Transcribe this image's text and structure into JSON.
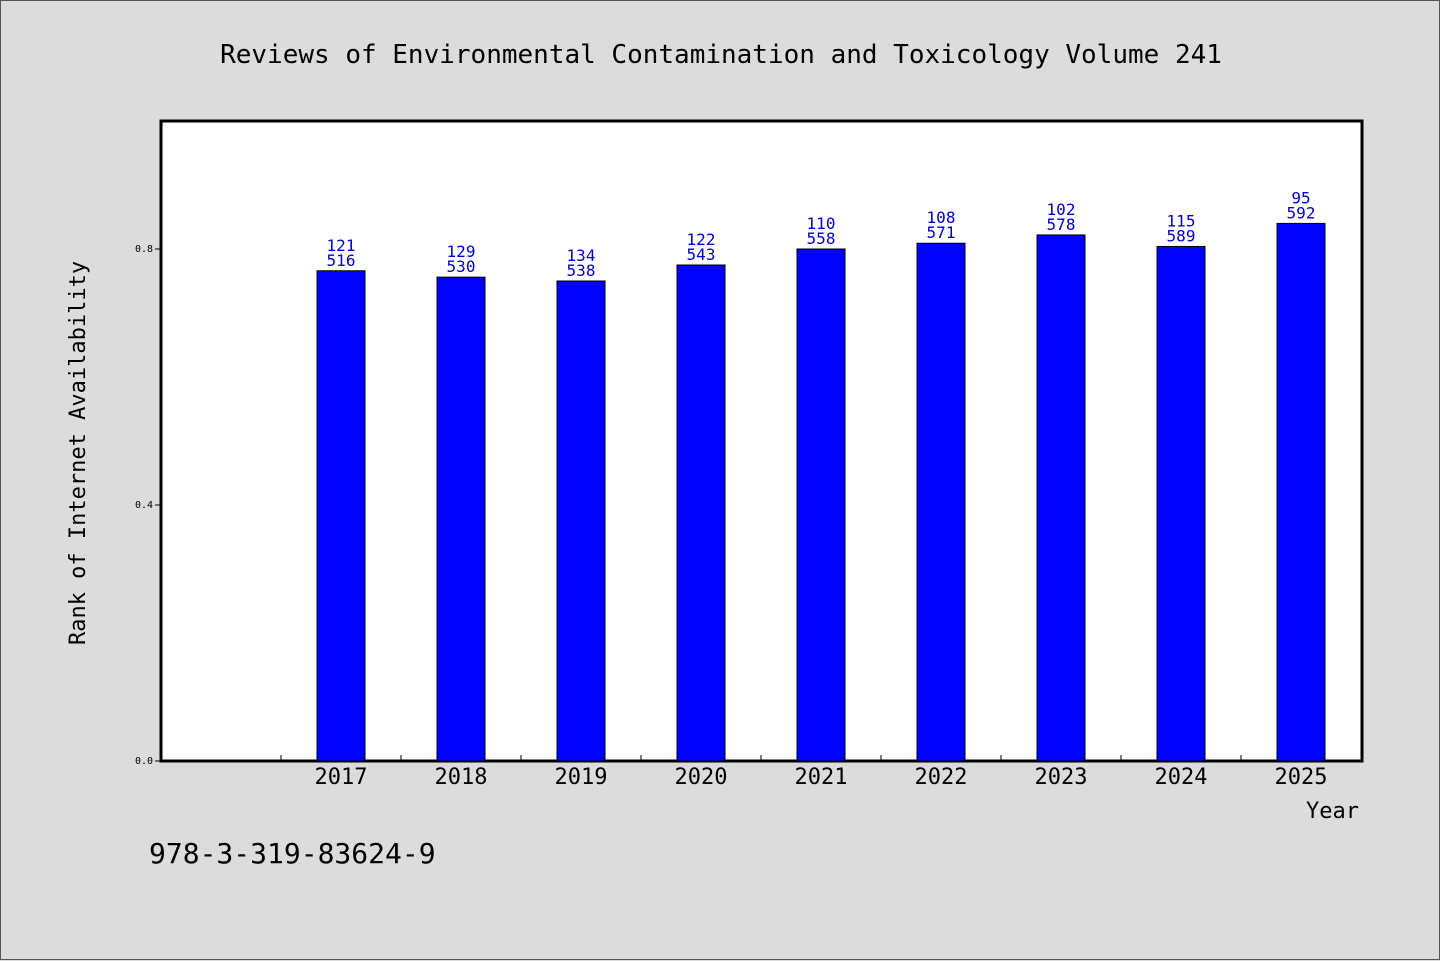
{
  "chart_data": {
    "type": "bar",
    "title": "Reviews of Environmental Contamination and Toxicology Volume 241",
    "xlabel": "Year",
    "ylabel": "Rank of Internet Availability",
    "ylim": [
      0,
      1.0
    ],
    "yticks": [
      "0.0",
      "0.4",
      "0.8"
    ],
    "ytick_values": [
      0.0,
      0.4,
      0.8
    ],
    "grid": false,
    "legend": "none",
    "bar_color": "#0000ff",
    "label_color": "#0000cc",
    "categories": [
      "2017",
      "2018",
      "2019",
      "2020",
      "2021",
      "2022",
      "2023",
      "2024",
      "2025"
    ],
    "values": [
      0.766,
      0.756,
      0.75,
      0.775,
      0.8,
      0.809,
      0.822,
      0.804,
      0.84
    ],
    "labels_top": [
      "121",
      "129",
      "134",
      "122",
      "110",
      "108",
      "102",
      "115",
      "95"
    ],
    "labels_bottom": [
      "516",
      "530",
      "538",
      "543",
      "558",
      "571",
      "578",
      "589",
      "592"
    ]
  },
  "footer": {
    "isbn": "978-3-319-83624-9"
  }
}
